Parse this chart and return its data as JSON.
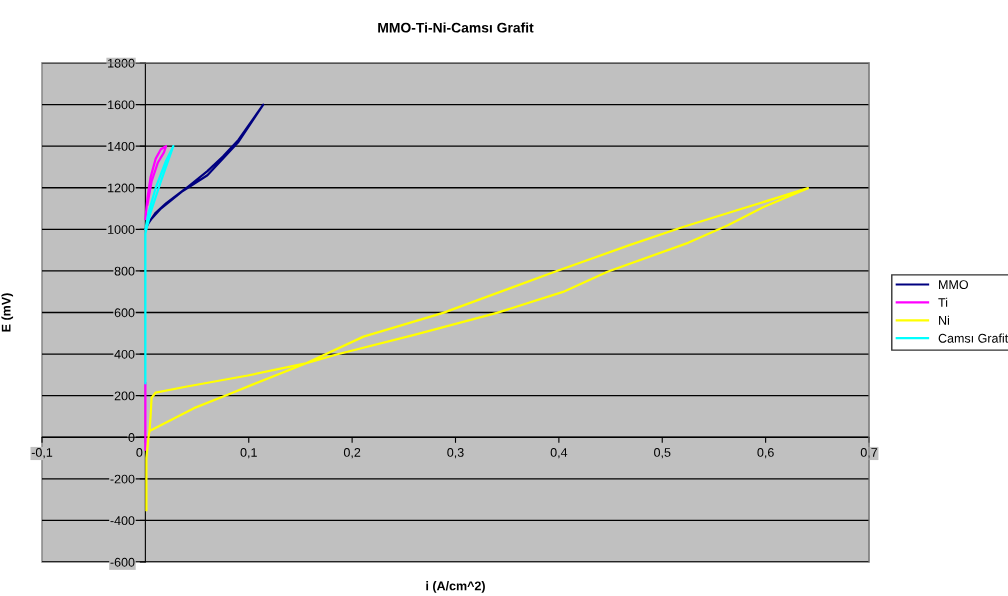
{
  "chart_data": {
    "type": "line",
    "title": "MMO-Ti-Ni-Camsı Grafit",
    "xlabel": "i (A/cm^2)",
    "ylabel": "E (mV)",
    "xlim": [
      -0.1,
      0.7
    ],
    "xticks": [
      {
        "value": -0.1,
        "label": "-0,1"
      },
      0,
      {
        "value": 0.1,
        "label": "0,1"
      },
      {
        "value": 0.2,
        "label": "0,2"
      },
      {
        "value": 0.3,
        "label": "0,3"
      },
      {
        "value": 0.4,
        "label": "0,4"
      },
      {
        "value": 0.5,
        "label": "0,5"
      },
      {
        "value": 0.6,
        "label": "0,6"
      },
      {
        "value": 0.7,
        "label": "0,7"
      }
    ],
    "ylim": [
      -600,
      1800
    ],
    "yticks": [
      -600,
      -400,
      -200,
      0,
      200,
      400,
      600,
      800,
      1000,
      1200,
      1400,
      1600,
      1800
    ],
    "grid": "y",
    "legend": "right",
    "marker": "none",
    "line_style": "solid",
    "series": [
      {
        "name": "MMO",
        "color": "#000080",
        "x": [
          null,
          0.003,
          0.01,
          0.02,
          0.04,
          0.06,
          0.075,
          0.09,
          0.114,
          0.09,
          0.06,
          0.035,
          0.015,
          0.004,
          0
        ],
        "values": [
          null,
          1030,
          1080,
          1125,
          1200,
          1280,
          1350,
          1430,
          1600,
          1420,
          1260,
          1180,
          1100,
          1040,
          1000
        ]
      },
      {
        "name": "Ti",
        "color": "#ff00ff",
        "x": [
          0,
          0,
          null,
          0,
          0.002,
          0.005,
          0.01,
          0.015,
          0.02,
          0.018,
          0.012,
          0.006,
          0.002
        ],
        "values": [
          -60,
          260,
          null,
          1050,
          1150,
          1250,
          1340,
          1385,
          1400,
          1370,
          1320,
          1230,
          1120
        ]
      },
      {
        "name": "Ni",
        "color": "#ffff00",
        "x": [
          0.001,
          0.001,
          0.003,
          0.004,
          0.047,
          0.082,
          0.103,
          0.155,
          0.185,
          0.262,
          0.34,
          0.404,
          0.447,
          0.525,
          0.564,
          0.598,
          0.641,
          0.52,
          0.469,
          0.396,
          0.288,
          0.211,
          0.155,
          0.099,
          0.039,
          0.01,
          0.006,
          0.005,
          0.004
        ],
        "values": [
          -350,
          -100,
          0,
          30,
          140,
          209,
          252,
          355,
          398,
          495,
          598,
          699,
          796,
          935,
          1021,
          1107,
          1198,
          1011,
          925,
          796,
          598,
          484,
          355,
          297,
          243,
          215,
          190,
          100,
          30
        ]
      },
      {
        "name": "Camsı Grafit",
        "color": "#00ffff",
        "x": [
          0,
          0,
          0.005,
          0.015,
          0.027,
          0.02,
          0.01,
          0.003,
          0
        ],
        "values": [
          260,
          980,
          1080,
          1230,
          1400,
          1330,
          1200,
          1080,
          1000
        ]
      }
    ]
  }
}
